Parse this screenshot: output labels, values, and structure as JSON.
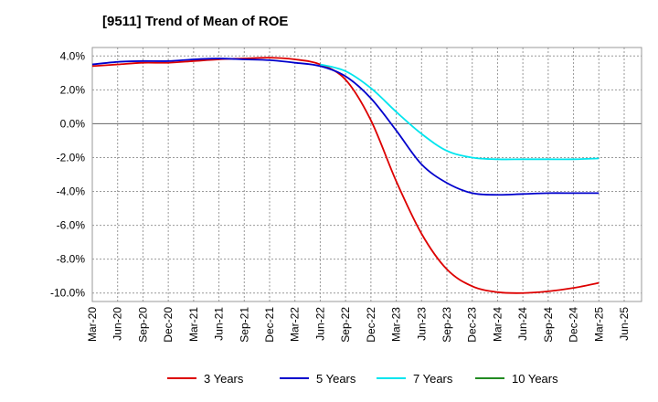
{
  "chart_data": {
    "type": "line",
    "title": "[9511]  Trend of Mean of ROE",
    "xlabel": "",
    "ylabel": "",
    "x_ticks": [
      "Mar-20",
      "Jun-20",
      "Sep-20",
      "Dec-20",
      "Mar-21",
      "Jun-21",
      "Sep-21",
      "Dec-21",
      "Mar-22",
      "Jun-22",
      "Sep-22",
      "Dec-22",
      "Mar-23",
      "Jun-23",
      "Sep-23",
      "Dec-23",
      "Mar-24",
      "Jun-24",
      "Sep-24",
      "Dec-24",
      "Mar-25",
      "Jun-25"
    ],
    "y_ticks": [
      4.0,
      2.0,
      0.0,
      -2.0,
      -4.0,
      -6.0,
      -8.0,
      -10.0
    ],
    "y_tick_labels": [
      "4.0%",
      "2.0%",
      "0.0%",
      "-2.0%",
      "-4.0%",
      "-6.0%",
      "-8.0%",
      "-10.0%"
    ],
    "ylim": [
      -10.5,
      4.5
    ],
    "grid": true,
    "legend_position": "bottom",
    "series": [
      {
        "name": "3 Years",
        "color": "#dd0000",
        "x": [
          "Mar-20",
          "Jun-20",
          "Sep-20",
          "Dec-20",
          "Mar-21",
          "Jun-21",
          "Sep-21",
          "Dec-21",
          "Mar-22",
          "Jun-22",
          "Sep-22",
          "Dec-22",
          "Mar-23",
          "Jun-23",
          "Sep-23",
          "Dec-23",
          "Mar-24",
          "Jun-24",
          "Sep-24",
          "Dec-24",
          "Mar-25"
        ],
        "values": [
          3.4,
          3.5,
          3.6,
          3.6,
          3.7,
          3.8,
          3.85,
          3.9,
          3.8,
          3.5,
          2.6,
          0.2,
          -3.4,
          -6.5,
          -8.6,
          -9.6,
          -9.95,
          -10.0,
          -9.9,
          -9.7,
          -9.4
        ]
      },
      {
        "name": "5 Years",
        "color": "#0000cc",
        "x": [
          "Mar-20",
          "Jun-20",
          "Sep-20",
          "Dec-20",
          "Mar-21",
          "Jun-21",
          "Sep-21",
          "Dec-21",
          "Mar-22",
          "Jun-22",
          "Sep-22",
          "Dec-22",
          "Mar-23",
          "Jun-23",
          "Sep-23",
          "Dec-23",
          "Mar-24",
          "Jun-24",
          "Sep-24",
          "Dec-24",
          "Mar-25"
        ],
        "values": [
          3.5,
          3.65,
          3.7,
          3.7,
          3.8,
          3.85,
          3.8,
          3.75,
          3.6,
          3.4,
          2.8,
          1.5,
          -0.4,
          -2.4,
          -3.5,
          -4.1,
          -4.2,
          -4.15,
          -4.1,
          -4.1,
          -4.1
        ]
      },
      {
        "name": "7 Years",
        "color": "#00e5ee",
        "x": [
          "Jun-22",
          "Sep-22",
          "Dec-22",
          "Mar-23",
          "Jun-23",
          "Sep-23",
          "Dec-23",
          "Mar-24",
          "Jun-24",
          "Sep-24",
          "Dec-24",
          "Mar-25"
        ],
        "values": [
          3.5,
          3.1,
          2.1,
          0.7,
          -0.6,
          -1.6,
          -2.0,
          -2.1,
          -2.1,
          -2.1,
          -2.1,
          -2.05
        ]
      },
      {
        "name": "10 Years",
        "color": "#228b22",
        "x": [],
        "values": []
      }
    ]
  }
}
